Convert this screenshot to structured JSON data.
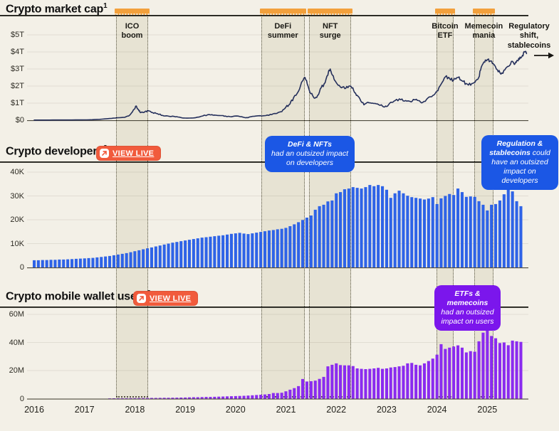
{
  "colors": {
    "background": "#F3F0E7",
    "band_fill": "#E7E3D3",
    "topper_orange": "#F2A03C",
    "button_orange": "#F15B3C",
    "market_cap_line_navy": "#242F5B",
    "developers_bar_blue": "#2E63E7",
    "wallet_bar_purple": "#8A2BEF",
    "callout_blue": "#1B57E5",
    "callout_purple": "#7B16EC"
  },
  "charts": {
    "market_cap": {
      "title": "Crypto market cap",
      "footnote_sup": "1"
    },
    "developers": {
      "title": "Crypto developers",
      "footnote_sup": "2",
      "view_live": "VIEW LIVE"
    },
    "wallet_users": {
      "title": "Crypto mobile wallet users",
      "footnote_sup": "3",
      "view_live": "VIEW LIVE"
    }
  },
  "annotations": {
    "regulatory_note": "Regulatory shift, stablecoins",
    "callouts": {
      "defi_nfts": {
        "bold": "DeFi & NFTs",
        "rest": "had an outsized impact on developers"
      },
      "regulation": {
        "bold": "Regulation & stablecoins",
        "rest": "could have an outsized impact on developers"
      },
      "etfs_memecoins": {
        "bold": "ETFs & memecoins",
        "rest": "had an outsized impact on users"
      }
    }
  },
  "events": [
    {
      "label": "ICO boom",
      "lines": "ICO\nboom",
      "start_year": 2017.63,
      "end_year": 2018.26
    },
    {
      "label": "DeFi summer",
      "lines": "DeFi\nsummer",
      "start_year": 2020.51,
      "end_year": 2021.37
    },
    {
      "label": "NFT surge",
      "lines": "NFT\nsurge",
      "start_year": 2021.46,
      "end_year": 2022.3
    },
    {
      "label": "Bitcoin ETF",
      "lines": "Bitcoin\nETF",
      "start_year": 2023.99,
      "end_year": 2024.33
    },
    {
      "label": "Memecoin mania",
      "lines": "Memecoin\nmania",
      "start_year": 2024.74,
      "end_year": 2025.12
    }
  ],
  "x_axis": {
    "years": [
      "2016",
      "2017",
      "2018",
      "2019",
      "2020",
      "2021",
      "2022",
      "2023",
      "2024",
      "2025"
    ]
  },
  "chart_data": [
    {
      "id": "market-cap",
      "type": "line",
      "title": "Crypto market cap",
      "unit": "USD trillions",
      "ylim": [
        0,
        5
      ],
      "tick_values": [
        0,
        1,
        2,
        3,
        4,
        5
      ],
      "tick_labels": [
        "$0",
        "$1T",
        "$2T",
        "$3T",
        "$4T",
        "$5T"
      ],
      "x_range": [
        2016,
        2025.8
      ],
      "points": [
        [
          2016.0,
          0.01
        ],
        [
          2016.3,
          0.01
        ],
        [
          2016.6,
          0.012
        ],
        [
          2016.9,
          0.016
        ],
        [
          2017.1,
          0.025
        ],
        [
          2017.3,
          0.05
        ],
        [
          2017.5,
          0.1
        ],
        [
          2017.65,
          0.14
        ],
        [
          2017.8,
          0.17
        ],
        [
          2017.9,
          0.3
        ],
        [
          2017.97,
          0.6
        ],
        [
          2018.03,
          0.83
        ],
        [
          2018.08,
          0.55
        ],
        [
          2018.12,
          0.45
        ],
        [
          2018.2,
          0.5
        ],
        [
          2018.27,
          0.55
        ],
        [
          2018.35,
          0.45
        ],
        [
          2018.45,
          0.38
        ],
        [
          2018.55,
          0.28
        ],
        [
          2018.65,
          0.25
        ],
        [
          2018.78,
          0.22
        ],
        [
          2018.88,
          0.18
        ],
        [
          2018.95,
          0.13
        ],
        [
          2019.05,
          0.12
        ],
        [
          2019.2,
          0.14
        ],
        [
          2019.35,
          0.25
        ],
        [
          2019.48,
          0.33
        ],
        [
          2019.58,
          0.3
        ],
        [
          2019.7,
          0.27
        ],
        [
          2019.8,
          0.24
        ],
        [
          2019.92,
          0.2
        ],
        [
          2020.05,
          0.24
        ],
        [
          2020.2,
          0.14
        ],
        [
          2020.3,
          0.2
        ],
        [
          2020.45,
          0.26
        ],
        [
          2020.6,
          0.27
        ],
        [
          2020.72,
          0.33
        ],
        [
          2020.82,
          0.4
        ],
        [
          2020.92,
          0.5
        ],
        [
          2021.0,
          0.77
        ],
        [
          2021.08,
          0.95
        ],
        [
          2021.15,
          1.3
        ],
        [
          2021.25,
          1.7
        ],
        [
          2021.33,
          2.3
        ],
        [
          2021.38,
          2.5
        ],
        [
          2021.44,
          2.0
        ],
        [
          2021.5,
          1.55
        ],
        [
          2021.56,
          1.3
        ],
        [
          2021.63,
          1.45
        ],
        [
          2021.7,
          1.9
        ],
        [
          2021.78,
          2.2
        ],
        [
          2021.85,
          2.9
        ],
        [
          2021.88,
          3.0
        ],
        [
          2021.94,
          2.6
        ],
        [
          2022.0,
          2.2
        ],
        [
          2022.08,
          1.95
        ],
        [
          2022.17,
          1.85
        ],
        [
          2022.25,
          2.0
        ],
        [
          2022.33,
          1.9
        ],
        [
          2022.4,
          1.45
        ],
        [
          2022.47,
          1.25
        ],
        [
          2022.55,
          0.9
        ],
        [
          2022.63,
          1.05
        ],
        [
          2022.72,
          1.0
        ],
        [
          2022.82,
          0.95
        ],
        [
          2022.92,
          0.82
        ],
        [
          2023.0,
          0.8
        ],
        [
          2023.08,
          1.05
        ],
        [
          2023.17,
          1.15
        ],
        [
          2023.28,
          1.2
        ],
        [
          2023.38,
          1.15
        ],
        [
          2023.47,
          1.1
        ],
        [
          2023.55,
          1.2
        ],
        [
          2023.63,
          1.15
        ],
        [
          2023.72,
          1.05
        ],
        [
          2023.82,
          1.3
        ],
        [
          2023.92,
          1.45
        ],
        [
          2024.0,
          1.7
        ],
        [
          2024.08,
          2.1
        ],
        [
          2024.17,
          2.55
        ],
        [
          2024.25,
          2.45
        ],
        [
          2024.33,
          2.35
        ],
        [
          2024.42,
          2.5
        ],
        [
          2024.5,
          2.3
        ],
        [
          2024.58,
          2.15
        ],
        [
          2024.67,
          2.05
        ],
        [
          2024.75,
          2.2
        ],
        [
          2024.83,
          2.5
        ],
        [
          2024.88,
          3.1
        ],
        [
          2024.95,
          3.4
        ],
        [
          2025.0,
          3.55
        ],
        [
          2025.05,
          3.45
        ],
        [
          2025.12,
          3.3
        ],
        [
          2025.2,
          2.95
        ],
        [
          2025.27,
          2.7
        ],
        [
          2025.35,
          2.95
        ],
        [
          2025.42,
          3.15
        ],
        [
          2025.5,
          3.45
        ],
        [
          2025.55,
          3.3
        ],
        [
          2025.6,
          3.5
        ],
        [
          2025.65,
          3.7
        ],
        [
          2025.7,
          3.8
        ],
        [
          2025.74,
          4.0
        ],
        [
          2025.78,
          3.9
        ]
      ]
    },
    {
      "id": "developers",
      "type": "bar",
      "title": "Crypto developers",
      "unit": "thousands of developers, monthly",
      "start": "2016-01",
      "interval": "monthly",
      "ylim": [
        0,
        40
      ],
      "tick_values": [
        0,
        10,
        20,
        30,
        40
      ],
      "tick_labels": [
        "0",
        "10K",
        "20K",
        "30K",
        "40K"
      ],
      "values": [
        3.0,
        3.0,
        3.1,
        3.1,
        3.2,
        3.2,
        3.3,
        3.3,
        3.4,
        3.5,
        3.6,
        3.7,
        3.8,
        3.9,
        4.0,
        4.2,
        4.4,
        4.6,
        4.8,
        5.1,
        5.4,
        5.7,
        6.0,
        6.4,
        6.8,
        7.2,
        7.6,
        8.0,
        8.4,
        8.8,
        9.2,
        9.6,
        10.0,
        10.4,
        10.7,
        11.0,
        11.3,
        11.6,
        11.9,
        12.2,
        12.5,
        12.7,
        12.9,
        13.1,
        13.3,
        13.5,
        13.8,
        14.1,
        14.3,
        14.5,
        14.2,
        14.0,
        14.3,
        14.6,
        14.9,
        15.2,
        15.5,
        15.7,
        16.0,
        16.2,
        16.6,
        17.3,
        18.1,
        19.0,
        19.9,
        20.9,
        21.8,
        24.2,
        25.7,
        26.3,
        27.7,
        28.1,
        31.1,
        31.6,
        32.8,
        33.1,
        33.7,
        33.4,
        33.1,
        33.7,
        34.6,
        34.1,
        34.6,
        34.1,
        32.6,
        29.2,
        31.1,
        32.2,
        31.1,
        30.1,
        29.5,
        29.2,
        28.9,
        28.5,
        28.9,
        29.5,
        26.6,
        29.0,
        30.0,
        30.8,
        30.4,
        33.1,
        31.6,
        29.6,
        29.8,
        29.6,
        27.8,
        26.3,
        23.9,
        26.3,
        26.6,
        28.1,
        30.7,
        33.4,
        31.9,
        27.8,
        25.7
      ]
    },
    {
      "id": "wallet-users",
      "type": "bar",
      "title": "Crypto mobile wallet users",
      "unit": "millions of users, monthly",
      "start": "2016-01",
      "interval": "monthly",
      "ylim": [
        0,
        60
      ],
      "tick_values": [
        0,
        20,
        40,
        60
      ],
      "tick_labels": [
        "0",
        "20M",
        "40M",
        "60M"
      ],
      "values": [
        0.05,
        0.05,
        0.05,
        0.05,
        0.05,
        0.06,
        0.06,
        0.07,
        0.08,
        0.08,
        0.09,
        0.1,
        0.1,
        0.12,
        0.13,
        0.15,
        0.17,
        0.19,
        0.21,
        0.23,
        0.25,
        0.28,
        0.3,
        0.33,
        0.36,
        0.4,
        0.43,
        0.46,
        0.5,
        0.53,
        0.56,
        0.6,
        0.63,
        0.66,
        0.7,
        0.75,
        0.8,
        0.9,
        1.0,
        1.0,
        1.1,
        1.2,
        1.2,
        1.3,
        1.4,
        1.5,
        1.6,
        1.7,
        1.8,
        1.9,
        2.0,
        2.2,
        2.4,
        2.6,
        2.8,
        3.0,
        3.3,
        4.0,
        4.0,
        4.2,
        5.2,
        6.4,
        7.5,
        8.9,
        14.0,
        12.2,
        12.4,
        12.8,
        14.1,
        15.5,
        23.0,
        24.1,
        25.1,
        23.9,
        23.7,
        23.7,
        23.2,
        21.5,
        21.2,
        21.0,
        21.2,
        21.5,
        21.9,
        21.2,
        21.5,
        22.2,
        22.5,
        23.0,
        23.4,
        25.1,
        25.4,
        24.1,
        23.7,
        25.1,
        26.8,
        28.5,
        31.3,
        38.8,
        35.4,
        36.3,
        37.1,
        37.9,
        36.3,
        32.9,
        33.8,
        33.4,
        40.8,
        47.0,
        50.0,
        44.6,
        43.0,
        39.6,
        40.0,
        38.0,
        41.3,
        40.8,
        40.4
      ]
    }
  ]
}
